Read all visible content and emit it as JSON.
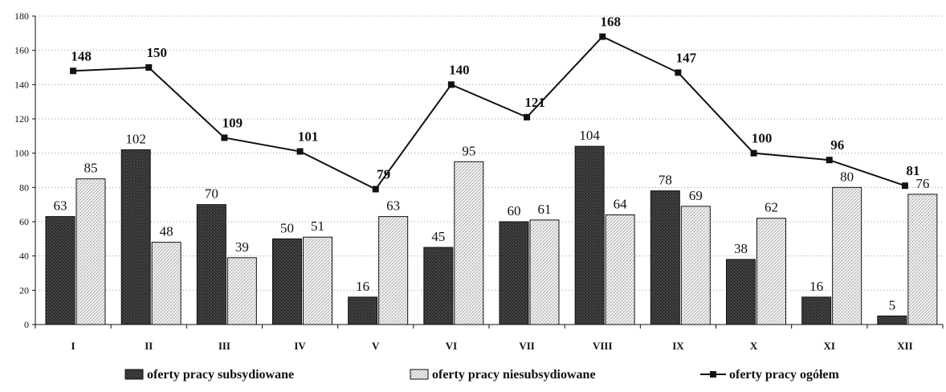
{
  "chart_data": {
    "type": "bar",
    "categories": [
      "I",
      "II",
      "III",
      "IV",
      "V",
      "VI",
      "VII",
      "VIII",
      "IX",
      "X",
      "XI",
      "XII"
    ],
    "series": [
      {
        "name": "oferty pracy subsydiowane",
        "kind": "bar",
        "color": "#2a2a2a",
        "values": [
          63,
          102,
          70,
          50,
          16,
          45,
          60,
          104,
          78,
          38,
          16,
          5
        ]
      },
      {
        "name": "oferty pracy niesubsydiowane",
        "kind": "bar",
        "color": "#dcdcdc",
        "values": [
          85,
          48,
          39,
          51,
          63,
          95,
          61,
          64,
          69,
          62,
          80,
          76
        ]
      },
      {
        "name": "oferty pracy ogółem",
        "kind": "line",
        "color": "#111111",
        "values": [
          148,
          150,
          109,
          101,
          79,
          140,
          121,
          168,
          147,
          100,
          96,
          81
        ]
      }
    ],
    "title": "",
    "xlabel": "",
    "ylabel": "",
    "ylim": [
      0,
      180
    ],
    "yticks": [
      0,
      20,
      40,
      60,
      80,
      100,
      120,
      140,
      160,
      180
    ],
    "grid": true,
    "legend": "bottom"
  }
}
